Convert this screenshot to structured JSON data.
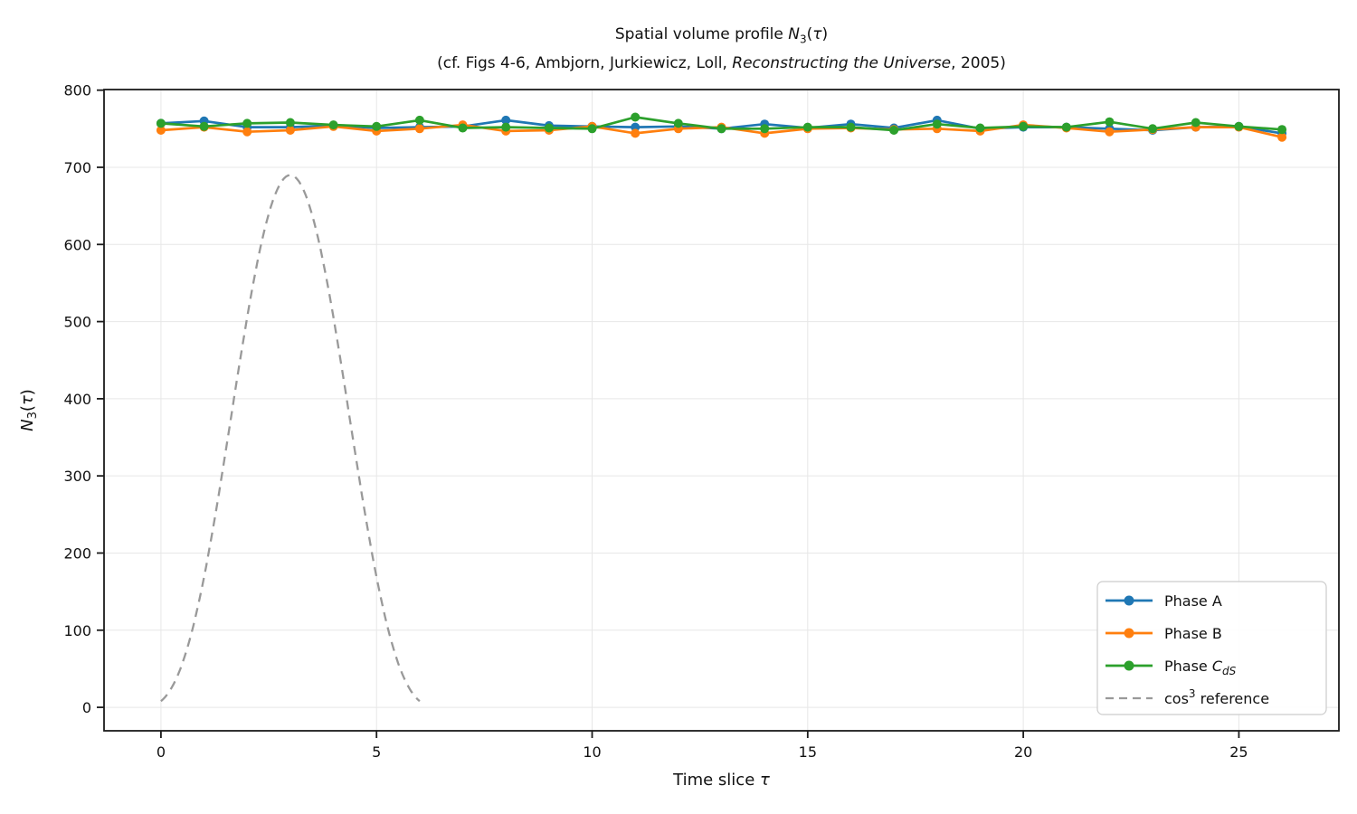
{
  "figure": {
    "title": {
      "prefix": "Spatial volume profile ",
      "n": "N",
      "sub": "3",
      "open_paren": "(",
      "tau": "τ",
      "close_paren": ")"
    },
    "subtitle": {
      "prefix": "(cf. Figs 4-6, Ambjorn, Jurkiewicz, Loll, ",
      "italic": "Reconstructing the Universe",
      "suffix": ", 2005)"
    }
  },
  "chart_data": {
    "type": "line",
    "title": "Spatial volume profile N₃(τ)",
    "subtitle": "(cf. Figs 4-6, Ambjorn, Jurkiewicz, Loll, Reconstructing the Universe, 2005)",
    "xlabel": "Time slice τ",
    "ylabel": "N₃(τ)",
    "xlabel_parts": [
      {
        "t": "Time slice "
      },
      {
        "t": "τ",
        "i": true
      }
    ],
    "ylabel_parts": [
      {
        "t": "N",
        "i": true
      },
      {
        "t": "3",
        "sub": true
      },
      {
        "t": "("
      },
      {
        "t": "τ",
        "i": true
      },
      {
        "t": ")"
      }
    ],
    "xlim": [
      -1.32,
      27.32
    ],
    "ylim": [
      -30.4,
      800.8
    ],
    "xticks": [
      0,
      5,
      10,
      15,
      20,
      25
    ],
    "yticks": [
      0,
      100,
      200,
      300,
      400,
      500,
      600,
      700,
      800
    ],
    "grid": true,
    "legend_position": "lower right",
    "x": [
      0,
      1,
      2,
      3,
      4,
      5,
      6,
      7,
      8,
      9,
      10,
      11,
      12,
      13,
      14,
      15,
      16,
      17,
      18,
      19,
      20,
      21,
      22,
      23,
      24,
      25,
      26
    ],
    "series": [
      {
        "name": "Phase A",
        "color": "#1f77b4",
        "marker": "circle",
        "values": [
          757,
          760,
          752,
          752,
          754,
          751,
          752,
          753,
          761,
          754,
          753,
          752,
          753,
          750,
          756,
          751,
          756,
          751,
          761,
          750,
          752,
          752,
          750,
          748,
          752,
          753,
          744
        ]
      },
      {
        "name": "Phase B",
        "color": "#ff7f0e",
        "marker": "circle",
        "values": [
          748,
          752,
          746,
          748,
          753,
          747,
          750,
          755,
          747,
          748,
          753,
          744,
          750,
          752,
          744,
          750,
          751,
          749,
          750,
          747,
          755,
          751,
          746,
          749,
          752,
          752,
          739
        ]
      },
      {
        "name": "Phase C_dS",
        "color": "#2ca02c",
        "marker": "circle",
        "values": [
          757,
          753,
          757,
          758,
          755,
          753,
          761,
          751,
          752,
          751,
          750,
          765,
          757,
          750,
          750,
          752,
          752,
          748,
          756,
          751,
          753,
          752,
          759,
          750,
          758,
          753,
          749
        ]
      }
    ],
    "reference_curve": {
      "name": "cos³ reference",
      "color": "#999999",
      "style": "dashed",
      "amplitude": 690,
      "center": 3,
      "width": 2.235,
      "domain": [
        0,
        6
      ],
      "formula": "N3(τ) = 690·cos³((τ−3)/2.235) for 0 ≤ τ ≤ 6"
    },
    "legend": [
      {
        "parts": [
          {
            "t": "Phase A"
          }
        ],
        "color": "#1f77b4",
        "sample": "line-marker"
      },
      {
        "parts": [
          {
            "t": "Phase B"
          }
        ],
        "color": "#ff7f0e",
        "sample": "line-marker"
      },
      {
        "parts": [
          {
            "t": "Phase "
          },
          {
            "t": "C",
            "i": true
          },
          {
            "t": "dS",
            "sub": true,
            "i": true
          }
        ],
        "color": "#2ca02c",
        "sample": "line-marker"
      },
      {
        "parts": [
          {
            "t": "cos"
          },
          {
            "t": "3",
            "sup": true
          },
          {
            "t": "  reference"
          }
        ],
        "color": "#999999",
        "sample": "dashed"
      }
    ],
    "colors": {
      "phase_a": "#1f77b4",
      "phase_b": "#ff7f0e",
      "phase_c": "#2ca02c",
      "reference": "#999999",
      "grid": "#e7e7e7",
      "spine": "#1c1c1c",
      "text": "#111111",
      "legend_border": "#cccccc"
    }
  }
}
